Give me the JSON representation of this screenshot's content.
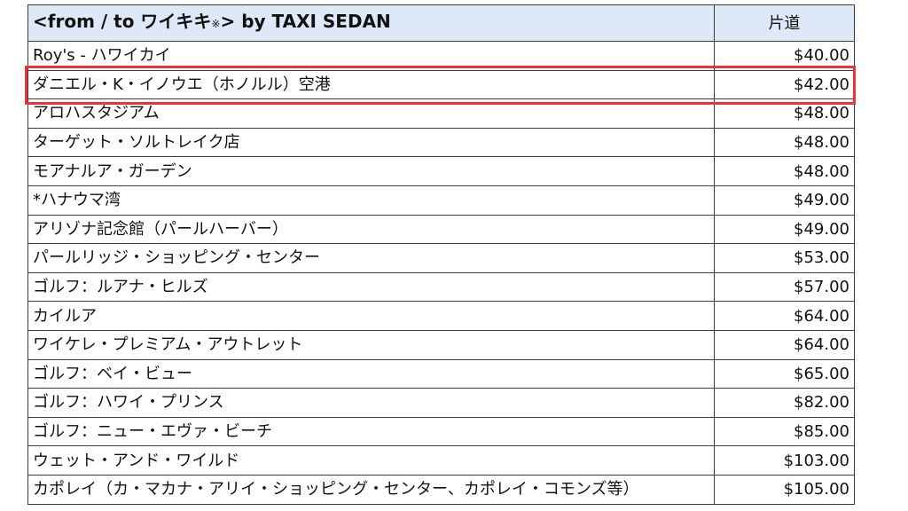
{
  "header": {
    "title_prefix": "<from / to ワイキキ",
    "title_mark": "※",
    "title_suffix": "> by TAXI SEDAN",
    "column": "片道"
  },
  "rows": [
    {
      "destination": "Roy's - ハワイカイ",
      "price": "$40.00"
    },
    {
      "destination": "ダニエル・K・イノウエ（ホノルル）空港",
      "price": "$42.00"
    },
    {
      "destination": "アロハスタジアム",
      "price": "$48.00"
    },
    {
      "destination": "ターゲット・ソルトレイク店",
      "price": "$48.00"
    },
    {
      "destination": "モアナルア・ガーデン",
      "price": "$48.00"
    },
    {
      "destination": "*ハナウマ湾",
      "price": "$49.00"
    },
    {
      "destination": "アリゾナ記念館（パールハーバー）",
      "price": "$49.00"
    },
    {
      "destination": "パールリッジ・ショッピング・センター",
      "price": "$53.00"
    },
    {
      "destination": "ゴルフ：ルアナ・ヒルズ",
      "price": "$57.00"
    },
    {
      "destination": "カイルア",
      "price": "$64.00"
    },
    {
      "destination": "ワイケレ・プレミアム・アウトレット",
      "price": "$64.00"
    },
    {
      "destination": "ゴルフ：ベイ・ビュー",
      "price": "$65.00"
    },
    {
      "destination": "ゴルフ：ハワイ・プリンス",
      "price": "$82.00"
    },
    {
      "destination": "ゴルフ：ニュー・エヴァ・ビーチ",
      "price": "$85.00"
    },
    {
      "destination": "ウェット・アンド・ワイルド",
      "price": "$103.00"
    },
    {
      "destination": "カポレイ（カ・マカナ・アリイ・ショッピング・センター、カポレイ・コモンズ等）",
      "price": "$105.00"
    }
  ],
  "highlight_color": "#e8353b",
  "header_bg": "#dde9f7"
}
